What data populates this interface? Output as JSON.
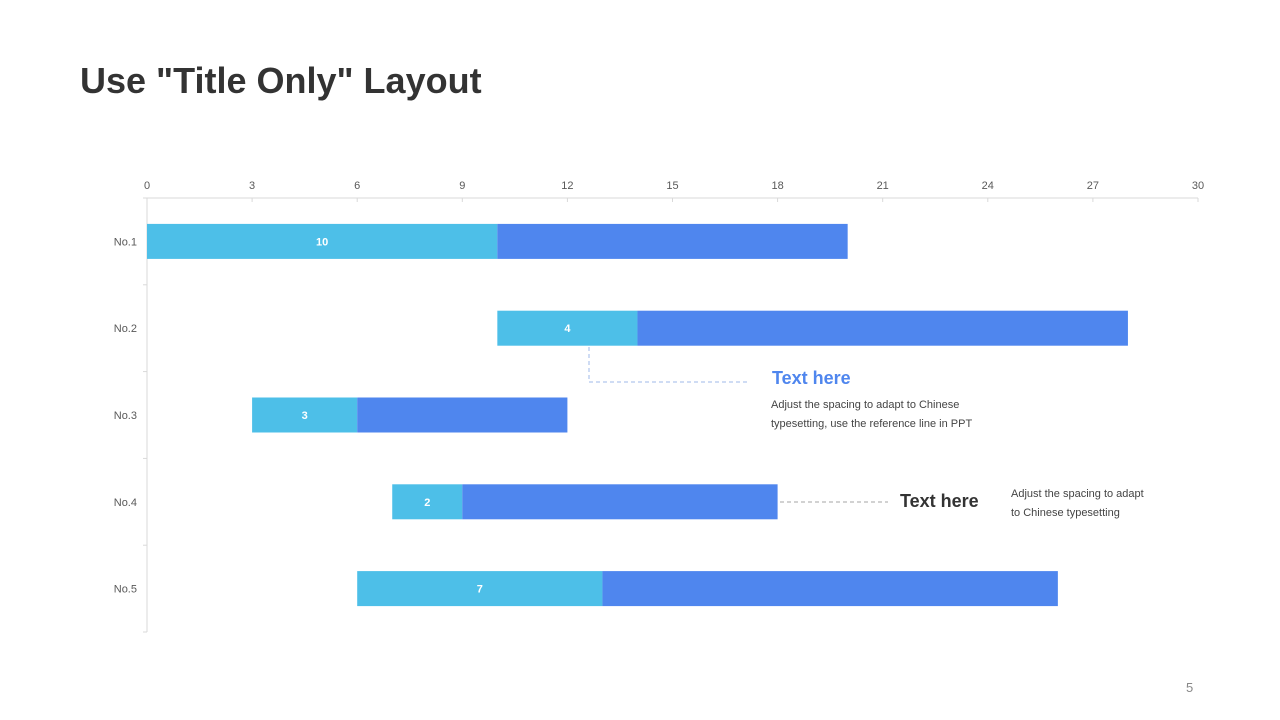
{
  "slide": {
    "title": "Use \"Title Only\" Layout",
    "page_number": "5"
  },
  "chart_data": {
    "type": "bar",
    "orientation": "horizontal",
    "stacked": true,
    "title": "",
    "xlabel": "",
    "ylabel": "",
    "xlim": [
      0,
      30
    ],
    "x_ticks": [
      0,
      3,
      6,
      9,
      12,
      15,
      18,
      21,
      24,
      27,
      30
    ],
    "categories": [
      "No.1",
      "No.2",
      "No.3",
      "No.4",
      "No.5"
    ],
    "series": [
      {
        "start": [
          0,
          10,
          3,
          7,
          6
        ],
        "values": [
          10,
          4,
          3,
          2,
          7
        ],
        "color": "#4DBFE8",
        "data_labels": true
      },
      {
        "values": [
          10,
          14,
          6,
          9,
          13
        ],
        "color": "#4F86EE",
        "data_labels": false
      }
    ],
    "grid": false,
    "legend": "none",
    "axis_position": "top"
  },
  "callouts": [
    {
      "title": "Text here",
      "title_color": "#4F86EE",
      "body_lines": [
        "Adjust the spacing to adapt to Chinese",
        "typesetting, use the reference line in PPT"
      ]
    },
    {
      "title": "Text here",
      "title_color": "#333333",
      "body_lines": [
        "Adjust the spacing to adapt",
        "to Chinese typesetting"
      ]
    }
  ]
}
